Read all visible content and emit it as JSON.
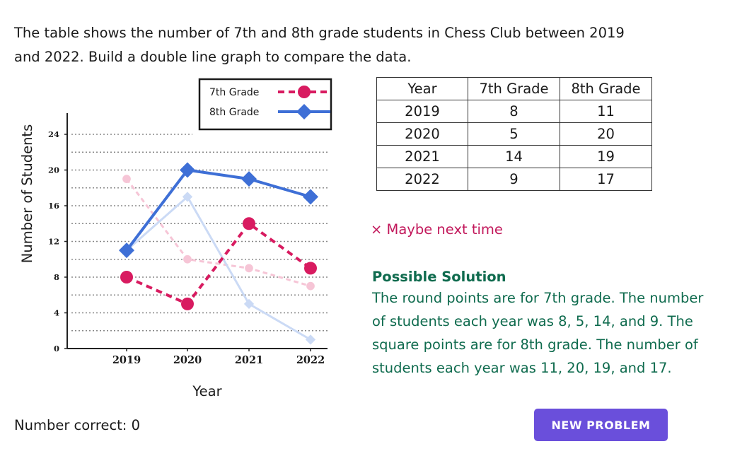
{
  "prompt": "The table shows the number of 7th and 8th grade students in Chess Club between 2019 and 2022. Build a double line graph to compare the data.",
  "chart_data": {
    "type": "line",
    "categories": [
      "2019",
      "2020",
      "2021",
      "2022"
    ],
    "series": [
      {
        "name": "7th Grade",
        "values": [
          8,
          5,
          14,
          9
        ],
        "color": "#d81b60",
        "line": "dashed",
        "marker": "circle"
      },
      {
        "name": "8th Grade",
        "values": [
          11,
          20,
          19,
          17
        ],
        "color": "#3e6fd6",
        "line": "solid",
        "marker": "diamond"
      }
    ],
    "faded_series": [
      {
        "values": [
          19,
          10,
          9,
          7
        ],
        "color": "#f6c5d6",
        "line": "dashed",
        "marker": "circle"
      },
      {
        "values": [
          11,
          17,
          5,
          1
        ],
        "color": "#cbdaf5",
        "line": "solid",
        "marker": "diamond"
      }
    ],
    "xlabel": "Year",
    "ylabel": "Number of Students",
    "ylim": [
      0,
      24
    ],
    "yticks": [
      0,
      4,
      8,
      12,
      16,
      20,
      24
    ],
    "grid": true,
    "legend": "top-right"
  },
  "table": {
    "headers": [
      "Year",
      "7th Grade",
      "8th Grade"
    ],
    "rows": [
      [
        "2019",
        "8",
        "11"
      ],
      [
        "2020",
        "5",
        "20"
      ],
      [
        "2021",
        "14",
        "19"
      ],
      [
        "2022",
        "9",
        "17"
      ]
    ]
  },
  "feedback": "× Maybe next time",
  "solution": {
    "title": "Possible Solution",
    "text": "The round points are for 7th grade. The number of students each year was 8, 5, 14, and 9. The square points are for 8th grade. The number of students each year was 11, 20, 19, and 17."
  },
  "score": "Number correct: 0",
  "button": "NEW PROBLEM"
}
